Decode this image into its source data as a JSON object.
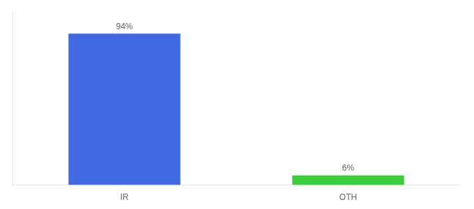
{
  "chart_data": {
    "type": "bar",
    "categories": [
      "IR",
      "OTH"
    ],
    "values": [
      94,
      6
    ],
    "value_labels": [
      "94%",
      "6%"
    ],
    "data_labels": true,
    "colors": [
      "#4169e1",
      "#3dcc3d"
    ],
    "ylim": [
      0,
      108
    ],
    "grid": false,
    "tick_labels": "x"
  }
}
